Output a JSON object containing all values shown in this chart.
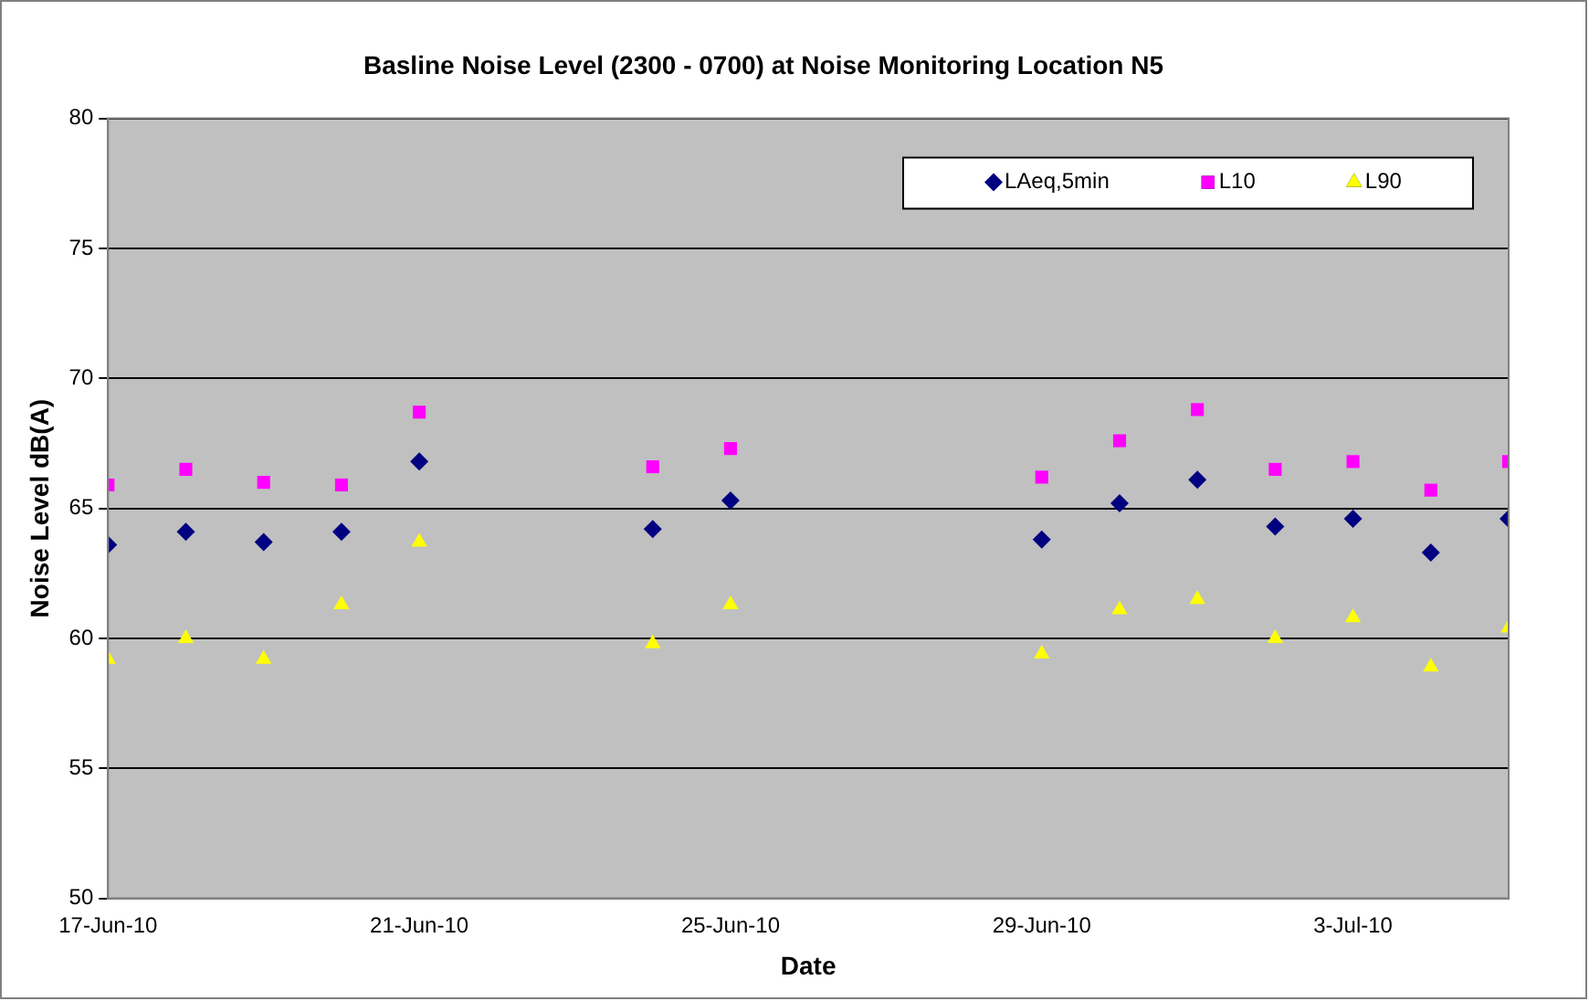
{
  "chart_data": {
    "type": "scatter",
    "title": "Basline Noise Level (2300 - 0700) at Noise Monitoring Location N5",
    "xlabel": "Date",
    "ylabel": "Noise Level dB(A)",
    "x": [
      "--06-17",
      "--06-18",
      "--06-19",
      "--06-20",
      "--06-21",
      "--06-24",
      "--06-25",
      "--06-29",
      "--06-30",
      "--07-01",
      "--07-02",
      "--07-03",
      "--07-04",
      "--07-05"
    ],
    "series": [
      {
        "name": "LAeq,5min",
        "color": "#000080",
        "marker": "diamond",
        "values": [
          63.6,
          64.1,
          63.7,
          64.1,
          66.8,
          64.2,
          65.3,
          63.8,
          65.2,
          66.1,
          64.3,
          64.6,
          63.3,
          64.6
        ]
      },
      {
        "name": "L10",
        "color": "#ff00ff",
        "marker": "square",
        "values": [
          65.9,
          66.5,
          66.0,
          65.9,
          68.7,
          66.6,
          67.3,
          66.2,
          67.6,
          68.8,
          66.5,
          66.8,
          65.7,
          66.8
        ]
      },
      {
        "name": "L90",
        "color": "#ffff00",
        "marker": "triangle",
        "values": [
          59.2,
          60.0,
          59.2,
          61.3,
          63.7,
          59.8,
          61.3,
          59.4,
          61.1,
          61.5,
          60.0,
          60.8,
          58.9,
          60.4
        ]
      }
    ],
    "xlim": [
      "--06-17",
      "--07-05"
    ],
    "xticks": [
      {
        "value": "--06-17",
        "label": "17-Jun-10"
      },
      {
        "value": "--06-21",
        "label": "21-Jun-10"
      },
      {
        "value": "--06-25",
        "label": "25-Jun-10"
      },
      {
        "value": "--06-29",
        "label": "29-Jun-10"
      },
      {
        "value": "--07-03",
        "label": "3-Jul-10"
      }
    ],
    "ylim": [
      50,
      80
    ],
    "yticks": [
      50,
      55,
      60,
      65,
      70,
      75,
      80
    ],
    "grid": "y",
    "legend": "top right"
  }
}
